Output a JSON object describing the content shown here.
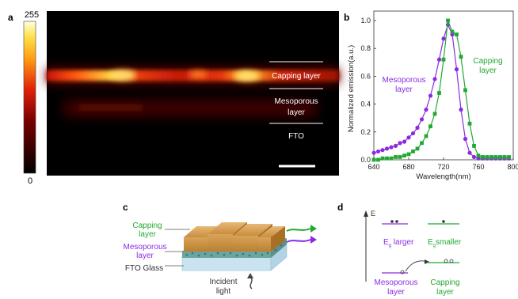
{
  "panels": {
    "a": {
      "letter": "a",
      "colorbar": {
        "max": "255",
        "min": "0"
      },
      "labels": {
        "capping": "Capping layer",
        "meso_line1": "Mesoporous",
        "meso_line2": "layer",
        "fto": "FTO"
      }
    },
    "b": {
      "letter": "b"
    },
    "c": {
      "letter": "c",
      "capping_line1": "Capping",
      "capping_line2": "layer",
      "meso_line1": "Mesoporous",
      "meso_line2": "layer",
      "fto": "FTO Glass",
      "incident_line1": "Incident",
      "incident_line2": "light"
    },
    "d": {
      "letter": "d",
      "axis": "E",
      "left_gap_prefix": "E",
      "left_gap_sub": "g",
      "left_gap_suffix": " larger",
      "right_gap_prefix": "E",
      "right_gap_sub": "g",
      "right_gap_suffix": "smaller",
      "left_line1": "Mesoporous",
      "left_line2": "layer",
      "right_line1": "Capping",
      "right_line2": "layer"
    }
  },
  "colors": {
    "mesoporous": "#8a2be2",
    "capping": "#22a832",
    "axis": "#333333"
  },
  "chart_data": {
    "type": "line",
    "xlabel": "Wavelength(nm)",
    "ylabel": "Normalized emission(a.u.)",
    "xlim": [
      640,
      800
    ],
    "ylim": [
      0.0,
      1.0
    ],
    "xticks": [
      "640",
      "680",
      "720",
      "760",
      "800"
    ],
    "yticks": [
      "0.0",
      "0.2",
      "0.4",
      "0.6",
      "0.8",
      "1.0"
    ],
    "annotations": {
      "mesoporous_line1": "Mesoporous",
      "mesoporous_line2": "layer",
      "capping_line1": "Capping",
      "capping_line2": "layer"
    },
    "series": [
      {
        "key": "mesoporous",
        "x": [
          640,
          645,
          650,
          655,
          660,
          665,
          670,
          675,
          680,
          685,
          690,
          695,
          700,
          705,
          710,
          715,
          720,
          725,
          730,
          735,
          740,
          745,
          750,
          755,
          760,
          765,
          770,
          775,
          780,
          785,
          790,
          795
        ],
        "y": [
          0.05,
          0.06,
          0.07,
          0.08,
          0.09,
          0.1,
          0.12,
          0.13,
          0.16,
          0.19,
          0.23,
          0.29,
          0.36,
          0.46,
          0.58,
          0.72,
          0.87,
          0.97,
          0.9,
          0.65,
          0.36,
          0.15,
          0.05,
          0.02,
          0.01,
          0.01,
          0.01,
          0.01,
          0.01,
          0.01,
          0.01,
          0.01
        ]
      },
      {
        "key": "capping",
        "x": [
          640,
          645,
          650,
          655,
          660,
          665,
          670,
          675,
          680,
          685,
          690,
          695,
          700,
          705,
          710,
          715,
          720,
          725,
          730,
          735,
          740,
          745,
          750,
          755,
          760,
          765,
          770,
          775,
          780,
          785,
          790,
          795
        ],
        "y": [
          0.0,
          0.0,
          0.01,
          0.01,
          0.01,
          0.02,
          0.02,
          0.03,
          0.04,
          0.06,
          0.08,
          0.12,
          0.17,
          0.24,
          0.33,
          0.48,
          0.72,
          1.0,
          0.92,
          0.9,
          0.74,
          0.5,
          0.26,
          0.1,
          0.03,
          0.02,
          0.02,
          0.02,
          0.02,
          0.02,
          0.02,
          0.02
        ]
      }
    ]
  }
}
